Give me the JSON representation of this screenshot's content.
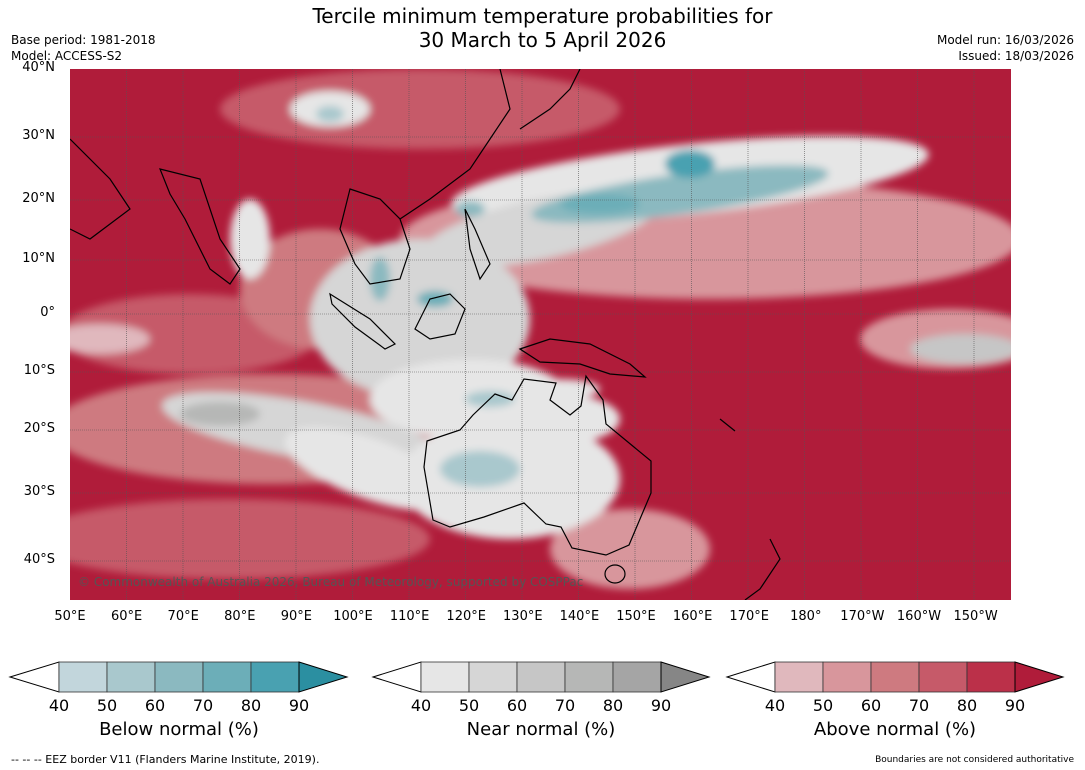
{
  "header": {
    "title_line1": "Tercile minimum temperature probabilities for",
    "title_line2": "30 March to 5 April 2026",
    "base_period": "Base period: 1981-2018",
    "model": "Model: ACCESS-S2",
    "model_run": "Model run: 16/03/2026",
    "issued": "Issued: 18/03/2026"
  },
  "map": {
    "copyright": "© Commonwealth of Australia 2026, Bureau of Meteorology, supported by COSPPac",
    "lat_labels": [
      "40°N",
      "30°N",
      "20°N",
      "10°N",
      "0°",
      "10°S",
      "20°S",
      "30°S",
      "40°S"
    ],
    "lon_labels": [
      "50°E",
      "60°E",
      "70°E",
      "80°E",
      "90°E",
      "100°E",
      "110°E",
      "120°E",
      "130°E",
      "140°E",
      "150°E",
      "160°E",
      "170°E",
      "180°",
      "170°W",
      "160°W",
      "150°W"
    ]
  },
  "colorbars": [
    {
      "label": "Below normal (%)",
      "ticks": [
        "40",
        "50",
        "60",
        "70",
        "80",
        "90"
      ],
      "colors": [
        "#c2d6dc",
        "#a9c8cd",
        "#8bb9c0",
        "#6caeb8",
        "#49a1b1",
        "#2b8fa1"
      ]
    },
    {
      "label": "Near normal (%)",
      "ticks": [
        "40",
        "50",
        "60",
        "70",
        "80",
        "90"
      ],
      "colors": [
        "#e6e6e6",
        "#d6d6d6",
        "#c6c6c6",
        "#b6b7b6",
        "#a5a5a5",
        "#868686"
      ]
    },
    {
      "label": "Above normal (%)",
      "ticks": [
        "40",
        "50",
        "60",
        "70",
        "80",
        "90"
      ],
      "colors": [
        "#e0b8bd",
        "#d8969c",
        "#ce7a80",
        "#c65a69",
        "#bb3049",
        "#b01c3a"
      ]
    }
  ],
  "footer": {
    "eez": "--  --  -- EEZ border V11 (Flanders Marine Institute, 2019).",
    "disclaimer": "Boundaries are not considered authoritative"
  }
}
